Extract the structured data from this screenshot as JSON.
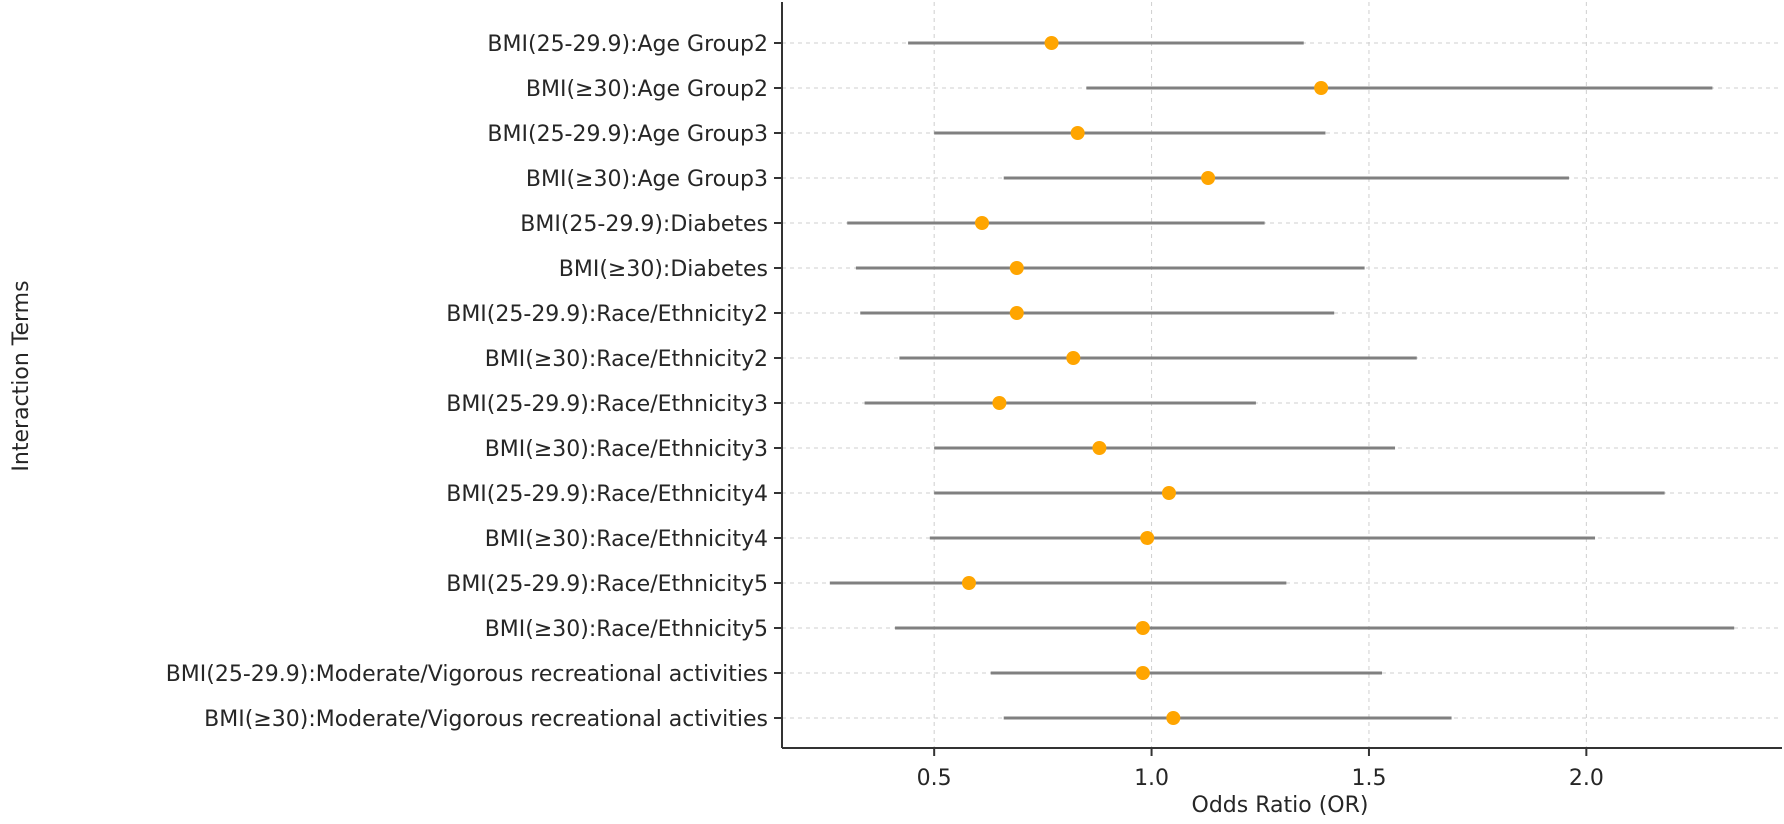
{
  "chart_data": {
    "type": "scatter",
    "subtype": "forest-plot",
    "title": "",
    "xlabel": "Odds Ratio (OR)",
    "ylabel": "Interaction Terms",
    "xlim": [
      0.15,
      2.45
    ],
    "xticks": [
      0.5,
      1.0,
      1.5,
      2.0
    ],
    "xtick_labels": [
      "0.5",
      "1.0",
      "1.5",
      "2.0"
    ],
    "grid": true,
    "colors": {
      "point": "#ffa500",
      "ci": "#808080",
      "grid": "#cfcfcf",
      "axis": "#333333"
    },
    "rows": [
      {
        "label": "BMI(25-29.9):Age Group2",
        "or": 0.77,
        "lower": 0.44,
        "upper": 1.35
      },
      {
        "label": "BMI(≥30):Age Group2",
        "or": 1.39,
        "lower": 0.85,
        "upper": 2.29
      },
      {
        "label": "BMI(25-29.9):Age Group3",
        "or": 0.83,
        "lower": 0.5,
        "upper": 1.4
      },
      {
        "label": "BMI(≥30):Age Group3",
        "or": 1.13,
        "lower": 0.66,
        "upper": 1.96
      },
      {
        "label": "BMI(25-29.9):Diabetes",
        "or": 0.61,
        "lower": 0.3,
        "upper": 1.26
      },
      {
        "label": "BMI(≥30):Diabetes",
        "or": 0.69,
        "lower": 0.32,
        "upper": 1.49
      },
      {
        "label": "BMI(25-29.9):Race/Ethnicity2",
        "or": 0.69,
        "lower": 0.33,
        "upper": 1.42
      },
      {
        "label": "BMI(≥30):Race/Ethnicity2",
        "or": 0.82,
        "lower": 0.42,
        "upper": 1.61
      },
      {
        "label": "BMI(25-29.9):Race/Ethnicity3",
        "or": 0.65,
        "lower": 0.34,
        "upper": 1.24
      },
      {
        "label": "BMI(≥30):Race/Ethnicity3",
        "or": 0.88,
        "lower": 0.5,
        "upper": 1.56
      },
      {
        "label": "BMI(25-29.9):Race/Ethnicity4",
        "or": 1.04,
        "lower": 0.5,
        "upper": 2.18
      },
      {
        "label": "BMI(≥30):Race/Ethnicity4",
        "or": 0.99,
        "lower": 0.49,
        "upper": 2.02
      },
      {
        "label": "BMI(25-29.9):Race/Ethnicity5",
        "or": 0.58,
        "lower": 0.26,
        "upper": 1.31
      },
      {
        "label": "BMI(≥30):Race/Ethnicity5",
        "or": 0.98,
        "lower": 0.41,
        "upper": 2.34
      },
      {
        "label": "BMI(25-29.9):Moderate/Vigorous recreational activities",
        "or": 0.98,
        "lower": 0.63,
        "upper": 1.53
      },
      {
        "label": "BMI(≥30):Moderate/Vigorous recreational activities",
        "or": 1.05,
        "lower": 0.66,
        "upper": 1.69
      }
    ]
  }
}
